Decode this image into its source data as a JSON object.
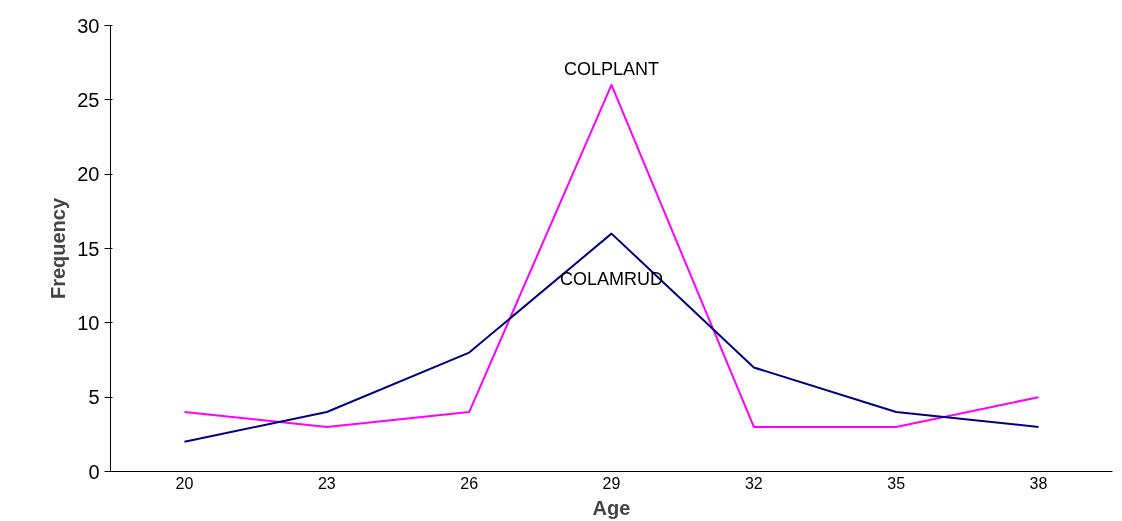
{
  "chart_data": {
    "type": "line",
    "xlabel": "Age",
    "ylabel": "Frequency",
    "categories": [
      "20",
      "23",
      "26",
      "29",
      "32",
      "35",
      "38"
    ],
    "series": [
      {
        "name": "COLPLANT",
        "color": "#ff00ff",
        "values": [
          4,
          3,
          4,
          26,
          3,
          3,
          5
        ]
      },
      {
        "name": "COLAMRUD",
        "color": "#000080",
        "values": [
          2,
          4,
          8,
          16,
          7,
          4,
          3
        ]
      }
    ],
    "ylim": [
      0,
      30
    ],
    "yticks": [
      0,
      5,
      10,
      15,
      20,
      25,
      30
    ],
    "grid": false,
    "legend": false,
    "marker": "none",
    "line_style": "solid"
  }
}
